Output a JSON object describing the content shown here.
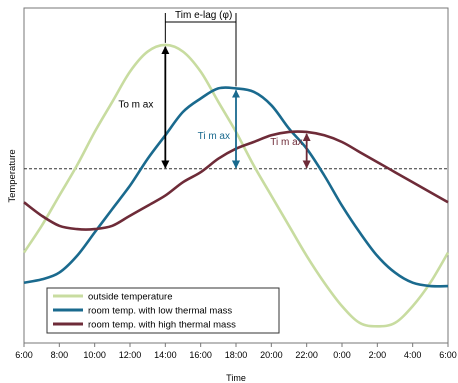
{
  "chart_data": {
    "type": "line",
    "title": "",
    "xlabel": "Time",
    "ylabel": "Temperature",
    "x_tick_labels": [
      "6:00",
      "8:00",
      "10:00",
      "12:00",
      "14:00",
      "16:00",
      "18:00",
      "20:00",
      "22:00",
      "0:00",
      "2:00",
      "4:00",
      "6:00"
    ],
    "x_hours_range": [
      6,
      30
    ],
    "y_axis_values_shown": false,
    "ylim": [
      0,
      100
    ],
    "grid": false,
    "legend_position": "bottom-left",
    "mean_line": {
      "y": 52,
      "style": "dashed"
    },
    "series": [
      {
        "name": "outside temperature",
        "color": "#c8dca0",
        "x": [
          6,
          7,
          8,
          9,
          10,
          11,
          12,
          13,
          14,
          15,
          16,
          17,
          18,
          19,
          20,
          21,
          22,
          23,
          24,
          25,
          26,
          27,
          28,
          29,
          30
        ],
        "y": [
          27,
          35,
          44,
          53,
          63,
          72,
          81,
          87,
          89,
          87,
          81,
          72,
          63,
          53,
          44,
          35,
          26,
          18,
          11,
          6,
          5,
          6,
          11,
          18,
          27
        ]
      },
      {
        "name": "room temp. with low thermal mass",
        "color": "#1a6a8e",
        "x": [
          6,
          7,
          8,
          9,
          10,
          11,
          12,
          13,
          14,
          15,
          16,
          17,
          18,
          19,
          20,
          21,
          22,
          23,
          24,
          25,
          26,
          27,
          28,
          29,
          30
        ],
        "y": [
          18,
          19,
          21,
          26,
          33,
          40,
          47,
          55,
          62,
          69,
          73,
          76,
          76,
          75,
          71,
          64,
          58,
          50,
          41,
          33,
          26,
          21,
          18,
          17,
          17
        ]
      },
      {
        "name": "room temp. with high thermal mass",
        "color": "#6e2b38",
        "x": [
          6,
          7,
          8,
          9,
          10,
          11,
          12,
          13,
          14,
          15,
          16,
          17,
          18,
          19,
          20,
          21,
          22,
          23,
          24,
          25,
          26,
          27,
          28,
          29,
          30
        ],
        "y": [
          42,
          38,
          35,
          34,
          34,
          35,
          38,
          41,
          44,
          48,
          51,
          55,
          58,
          60,
          62,
          63,
          63,
          62,
          60,
          57,
          54,
          51,
          48,
          45,
          42
        ]
      }
    ],
    "annotations": [
      {
        "label": "Tim e-lag (φ)",
        "type": "bracket",
        "x_from": 14,
        "x_to": 18
      },
      {
        "label": "To m ax",
        "type": "double-arrow",
        "x": 14,
        "y_from": 52,
        "y_to": 89,
        "color": "#000000"
      },
      {
        "label": "Ti m ax",
        "type": "double-arrow",
        "x": 18,
        "y_from": 52,
        "y_to": 76,
        "color": "#1a6a8e"
      },
      {
        "label": "Ti m ax",
        "type": "double-arrow",
        "x": 22,
        "y_from": 52,
        "y_to": 63,
        "color": "#6e2b38"
      }
    ]
  }
}
